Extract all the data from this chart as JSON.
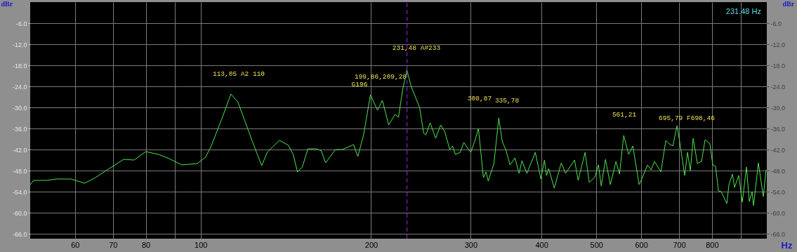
{
  "chart_data": {
    "type": "line",
    "xlabel": "Hz",
    "ylabel": "dBr",
    "y2label": "dBr",
    "log": "x",
    "grid": true,
    "marker": "none",
    "line_style": "solid",
    "xlim": [
      50,
      1000
    ],
    "xticks": [
      60,
      70,
      80,
      {
        "value": 90,
        "label": null
      },
      100,
      200,
      300,
      400,
      500,
      600,
      700,
      800,
      {
        "value": 900,
        "label": null
      }
    ],
    "ylim": [
      -67.4,
      0
    ],
    "yticks": [
      {
        "value": -6,
        "label": "-6.0"
      },
      {
        "value": -12,
        "label": "-12.0"
      },
      {
        "value": -18,
        "label": "-18.0"
      },
      {
        "value": -24,
        "label": "-24.0"
      },
      {
        "value": -30,
        "label": "-30.0"
      },
      {
        "value": -36,
        "label": "-36.0"
      },
      {
        "value": -42,
        "label": "-42.0"
      },
      {
        "value": -48,
        "label": "-48.0"
      },
      {
        "value": -54,
        "label": "-54.0"
      },
      {
        "value": -60,
        "label": "-60.0"
      },
      {
        "value": -66,
        "label": "-66.0"
      }
    ],
    "y2lim": [
      -67.4,
      0
    ],
    "y2ticks": [
      {
        "value": -6,
        "label": "-6.0"
      },
      {
        "value": -12,
        "label": "-12.0"
      },
      {
        "value": -18,
        "label": "-18.0"
      },
      {
        "value": -24,
        "label": "-24.0"
      },
      {
        "value": -30,
        "label": "-30.0"
      },
      {
        "value": -36,
        "label": "-36.0"
      },
      {
        "value": -42,
        "label": "-42.0"
      },
      {
        "value": -48,
        "label": "-48.0"
      },
      {
        "value": -54,
        "label": "-54.0"
      },
      {
        "value": -60,
        "label": "-60.0"
      },
      {
        "value": -66,
        "label": "-66.0"
      }
    ],
    "series": [
      {
        "color": "#4ee34e",
        "x": [
          50,
          50.7,
          53.4,
          55.7,
          59.0,
          62.4,
          65.2,
          69.0,
          73.1,
          76.3,
          80.0,
          84.3,
          88.0,
          92.6,
          98.6,
          102,
          104.4,
          108.9,
          113.1,
          116.3,
          119.7,
          123.2,
          128.2,
          131.1,
          137.7,
          142.9,
          145.7,
          148.3,
          151.2,
          154.7,
          160.2,
          163.4,
          166.2,
          173.0,
          178.0,
          186.3,
          189.5,
          193.9,
          199.5,
          205.3,
          209.4,
          214.9,
          220.4,
          223.6,
          227.5,
          231.4,
          235.4,
          243.6,
          247.8,
          250.0,
          254.3,
          260.1,
          265.4,
          270.0,
          275.4,
          278.6,
          281.8,
          287.5,
          291.6,
          300.0,
          305.2,
          309.5,
          315.8,
          319.3,
          322.1,
          329.6,
          336.2,
          341.1,
          345.9,
          351.9,
          359.0,
          365.2,
          369.4,
          376.9,
          390.0,
          399.0,
          404.8,
          408.3,
          411.8,
          421.3,
          433.5,
          441.0,
          449.8,
          457.6,
          464.2,
          477.6,
          485.8,
          497.0,
          504.2,
          510.0,
          518.8,
          529.3,
          541.5,
          549.3,
          558.8,
          570.1,
          579.9,
          595.0,
          603.6,
          615.7,
          624.5,
          633.5,
          650.0,
          663.2,
          672.7,
          682.4,
          694.1,
          702.1,
          716.1,
          724.4,
          732.8,
          741.2,
          754.0,
          767.0,
          778.0,
          793.6,
          802.8,
          812.0,
          821.4,
          830.8,
          850.0,
          857.3,
          869.6,
          877.0,
          892.1,
          905.1,
          920.7,
          931.2,
          941.9,
          947.4,
          966.3,
          985.8,
          997
        ],
        "values": [
          -52.0,
          -50.8,
          -50.8,
          -50.4,
          -50.4,
          -51.6,
          -50.0,
          -47.4,
          -44.8,
          -45.0,
          -42.6,
          -43.4,
          -44.6,
          -46.4,
          -46.0,
          -44.2,
          -41.0,
          -33.4,
          -26.2,
          -28.4,
          -33.8,
          -39.4,
          -46.6,
          -42.8,
          -39.4,
          -40.8,
          -43.4,
          -48.4,
          -47.0,
          -41.8,
          -41.8,
          -42.4,
          -45.8,
          -42.0,
          -42.0,
          -40.6,
          -44.0,
          -38.0,
          -26.4,
          -30.8,
          -28.0,
          -35.0,
          -32.0,
          -32.8,
          -24.8,
          -19.4,
          -24.0,
          -30.0,
          -37.4,
          -37.8,
          -34.4,
          -38.8,
          -35.0,
          -37.0,
          -42.0,
          -41.0,
          -43.4,
          -42.8,
          -40.0,
          -42.8,
          -39.4,
          -36.0,
          -50.0,
          -48.4,
          -51.0,
          -46.0,
          -33.0,
          -39.8,
          -42.0,
          -46.4,
          -44.4,
          -48.8,
          -45.2,
          -48.8,
          -42.8,
          -50.4,
          -45.0,
          -49.4,
          -47.4,
          -53.0,
          -45.8,
          -48.8,
          -46.8,
          -45.0,
          -50.8,
          -42.8,
          -51.4,
          -49.8,
          -46.4,
          -52.4,
          -44.8,
          -52.0,
          -45.4,
          -49.0,
          -38.0,
          -43.4,
          -41.0,
          -52.0,
          -49.8,
          -46.4,
          -47.8,
          -45.4,
          -48.4,
          -39.4,
          -40.4,
          -41.0,
          -35.2,
          -40.0,
          -49.4,
          -42.8,
          -48.0,
          -38.8,
          -46.0,
          -45.4,
          -39.2,
          -40.4,
          -46.4,
          -46.8,
          -53.8,
          -54.0,
          -57.4,
          -52.0,
          -49.0,
          -52.8,
          -49.4,
          -57.0,
          -47.0,
          -56.8,
          -54.0,
          -58.0,
          -45.8,
          -55.4,
          -47.8
        ]
      }
    ],
    "ref_lines": [
      {
        "axis": "x",
        "value": 231.48,
        "color": "#8a2be2",
        "line_style": "dashed"
      }
    ],
    "annotations": [
      "113,05 A2 110",
      "199,86,209,28",
      "G196",
      "231,48 A#233",
      "308,87",
      "335,78",
      "561,21",
      "695,79 F698,46",
      "231.48 Hz"
    ]
  }
}
